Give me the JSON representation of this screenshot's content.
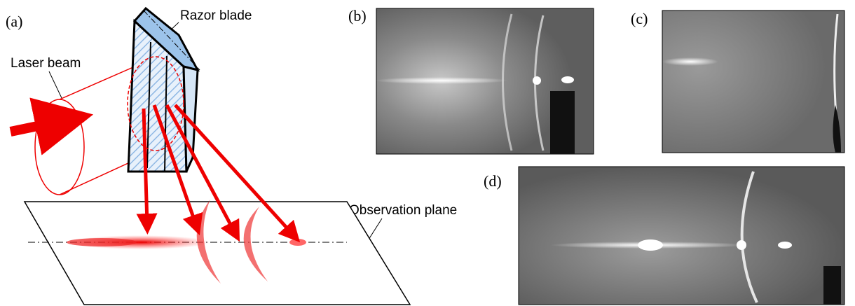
{
  "panels": {
    "a": "(a)",
    "b": "(b)",
    "c": "(c)",
    "d": "(d)"
  },
  "annotations": {
    "razor_blade": "Razor blade",
    "laser_beam": "Laser beam",
    "observation_plane": "Observation plane"
  }
}
